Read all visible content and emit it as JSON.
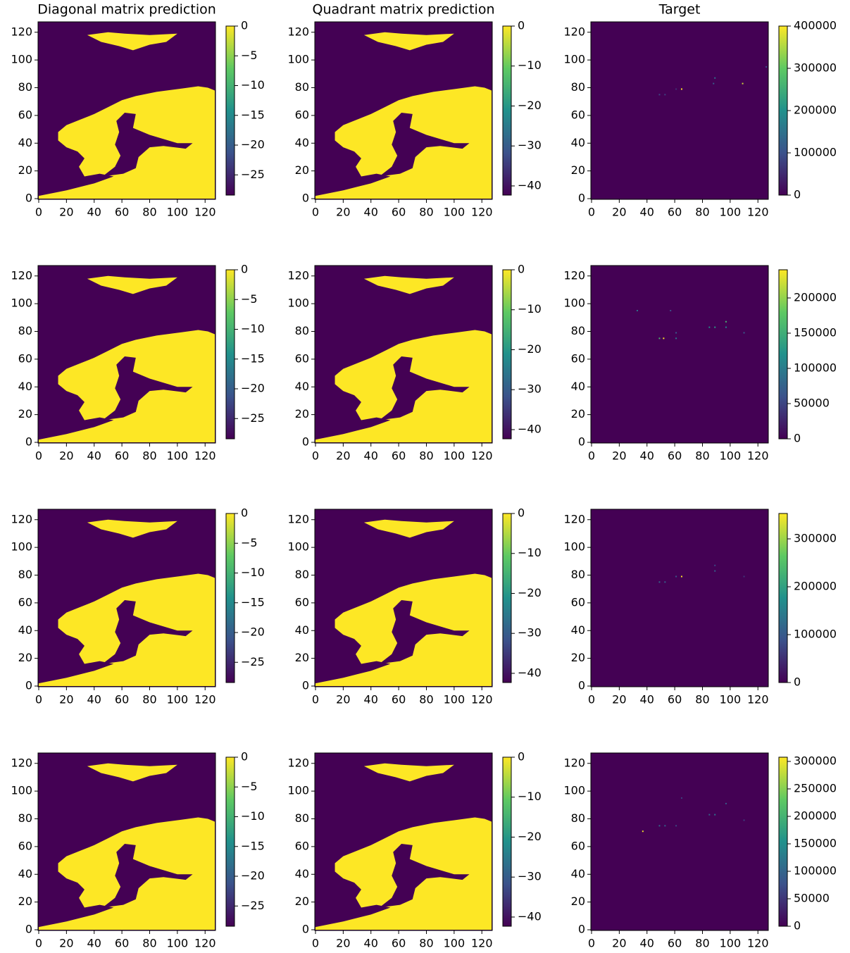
{
  "chart_data": [
    {
      "type": "heatmap",
      "title": "Diagonal matrix prediction",
      "xlim": [
        -0.5,
        127.5
      ],
      "ylim": [
        -0.5,
        127.5
      ],
      "xticks": [
        0,
        20,
        40,
        60,
        80,
        100,
        120
      ],
      "yticks": [
        0,
        20,
        40,
        60,
        80,
        100,
        120
      ],
      "cmap": "viridis",
      "clim": [
        -28.4,
        0
      ],
      "cticks": [
        {
          "value": -25,
          "label": "−25"
        },
        {
          "value": -20,
          "label": "−20"
        },
        {
          "value": -15,
          "label": "−15"
        },
        {
          "value": -10,
          "label": "−10"
        },
        {
          "value": -5,
          "label": "−5"
        },
        0
      ]
    },
    {
      "type": "heatmap",
      "title": "Quadrant matrix prediction",
      "xlim": [
        -0.5,
        127.5
      ],
      "ylim": [
        -0.5,
        127.5
      ],
      "xticks": [
        0,
        20,
        40,
        60,
        80,
        100,
        120
      ],
      "yticks": [
        0,
        20,
        40,
        60,
        80,
        100,
        120
      ],
      "cmap": "viridis",
      "clim": [
        -42.3,
        0
      ],
      "cticks": [
        {
          "value": -40,
          "label": "−40"
        },
        {
          "value": -30,
          "label": "−30"
        },
        {
          "value": -20,
          "label": "−20"
        },
        {
          "value": -10,
          "label": "−10"
        },
        0
      ]
    },
    {
      "type": "heatmap",
      "title": "Target",
      "xlim": [
        -0.5,
        127.5
      ],
      "ylim": [
        -0.5,
        127.5
      ],
      "xticks": [
        0,
        20,
        40,
        60,
        80,
        100,
        120
      ],
      "yticks": [
        0,
        20,
        40,
        60,
        80,
        100,
        120
      ],
      "cmap": "viridis",
      "clim": [
        0,
        400000
      ],
      "cticks": [
        0,
        100000,
        200000,
        300000,
        400000
      ],
      "points": {
        "x": [
          65,
          109,
          89,
          88,
          49,
          53,
          126,
          61
        ],
        "y": [
          79,
          83,
          87,
          83,
          75,
          75,
          95,
          79
        ],
        "values": [
          400000,
          370000,
          150000,
          120000,
          90000,
          80000,
          100000,
          60000
        ]
      }
    },
    {
      "type": "heatmap",
      "xlim": [
        -0.5,
        127.5
      ],
      "ylim": [
        -0.5,
        127.5
      ],
      "xticks": [
        0,
        20,
        40,
        60,
        80,
        100,
        120
      ],
      "yticks": [
        0,
        20,
        40,
        60,
        80,
        100,
        120
      ],
      "cmap": "viridis",
      "clim": [
        -28.4,
        0
      ],
      "cticks": [
        {
          "value": -25,
          "label": "−25"
        },
        {
          "value": -20,
          "label": "−20"
        },
        {
          "value": -15,
          "label": "−15"
        },
        {
          "value": -10,
          "label": "−10"
        },
        {
          "value": -5,
          "label": "−5"
        },
        0
      ]
    },
    {
      "type": "heatmap",
      "xlim": [
        -0.5,
        127.5
      ],
      "ylim": [
        -0.5,
        127.5
      ],
      "xticks": [
        0,
        20,
        40,
        60,
        80,
        100,
        120
      ],
      "yticks": [
        0,
        20,
        40,
        60,
        80,
        100,
        120
      ],
      "cmap": "viridis",
      "clim": [
        -42.3,
        0
      ],
      "cticks": [
        {
          "value": -40,
          "label": "−40"
        },
        {
          "value": -30,
          "label": "−30"
        },
        {
          "value": -20,
          "label": "−20"
        },
        {
          "value": -10,
          "label": "−10"
        },
        0
      ]
    },
    {
      "type": "heatmap",
      "xlim": [
        -0.5,
        127.5
      ],
      "ylim": [
        -0.5,
        127.5
      ],
      "xticks": [
        0,
        20,
        40,
        60,
        80,
        100,
        120
      ],
      "yticks": [
        0,
        20,
        40,
        60,
        80,
        100,
        120
      ],
      "cmap": "viridis",
      "clim": [
        0,
        240000
      ],
      "cticks": [
        0,
        50000,
        100000,
        150000,
        200000
      ],
      "points": {
        "x": [
          52,
          49,
          61,
          89,
          97,
          85,
          33,
          57,
          61,
          97,
          110
        ],
        "y": [
          75,
          75,
          75,
          83,
          87,
          83,
          95,
          95,
          79,
          83,
          79
        ],
        "values": [
          240000,
          160000,
          100000,
          130000,
          160000,
          120000,
          90000,
          60000,
          70000,
          110000,
          70000
        ]
      }
    },
    {
      "type": "heatmap",
      "xlim": [
        -0.5,
        127.5
      ],
      "ylim": [
        -0.5,
        127.5
      ],
      "xticks": [
        0,
        20,
        40,
        60,
        80,
        100,
        120
      ],
      "yticks": [
        0,
        20,
        40,
        60,
        80,
        100,
        120
      ],
      "cmap": "viridis",
      "clim": [
        -28.4,
        0
      ],
      "cticks": [
        {
          "value": -25,
          "label": "−25"
        },
        {
          "value": -20,
          "label": "−20"
        },
        {
          "value": -15,
          "label": "−15"
        },
        {
          "value": -10,
          "label": "−10"
        },
        {
          "value": -5,
          "label": "−5"
        },
        0
      ]
    },
    {
      "type": "heatmap",
      "xlim": [
        -0.5,
        127.5
      ],
      "ylim": [
        -0.5,
        127.5
      ],
      "xticks": [
        0,
        20,
        40,
        60,
        80,
        100,
        120
      ],
      "yticks": [
        0,
        20,
        40,
        60,
        80,
        100,
        120
      ],
      "cmap": "viridis",
      "clim": [
        -42.3,
        0
      ],
      "cticks": [
        {
          "value": -40,
          "label": "−40"
        },
        {
          "value": -30,
          "label": "−30"
        },
        {
          "value": -20,
          "label": "−20"
        },
        {
          "value": -10,
          "label": "−10"
        },
        0
      ]
    },
    {
      "type": "heatmap",
      "xlim": [
        -0.5,
        127.5
      ],
      "ylim": [
        -0.5,
        127.5
      ],
      "xticks": [
        0,
        20,
        40,
        60,
        80,
        100,
        120
      ],
      "yticks": [
        0,
        20,
        40,
        60,
        80,
        100,
        120
      ],
      "cmap": "viridis",
      "clim": [
        0,
        353000
      ],
      "cticks": [
        0,
        100000,
        200000,
        300000
      ],
      "points": {
        "x": [
          65,
          49,
          53,
          61,
          89,
          89,
          110
        ],
        "y": [
          79,
          75,
          75,
          79,
          83,
          87,
          79
        ],
        "values": [
          353000,
          120000,
          110000,
          100000,
          110000,
          80000,
          60000
        ]
      }
    },
    {
      "type": "heatmap",
      "xlim": [
        -0.5,
        127.5
      ],
      "ylim": [
        -0.5,
        127.5
      ],
      "xticks": [
        0,
        20,
        40,
        60,
        80,
        100,
        120
      ],
      "yticks": [
        0,
        20,
        40,
        60,
        80,
        100,
        120
      ],
      "cmap": "viridis",
      "clim": [
        -28.4,
        0
      ],
      "cticks": [
        {
          "value": -25,
          "label": "−25"
        },
        {
          "value": -20,
          "label": "−20"
        },
        {
          "value": -15,
          "label": "−15"
        },
        {
          "value": -10,
          "label": "−10"
        },
        {
          "value": -5,
          "label": "−5"
        },
        0
      ]
    },
    {
      "type": "heatmap",
      "xlim": [
        -0.5,
        127.5
      ],
      "ylim": [
        -0.5,
        127.5
      ],
      "xticks": [
        0,
        20,
        40,
        60,
        80,
        100,
        120
      ],
      "yticks": [
        0,
        20,
        40,
        60,
        80,
        100,
        120
      ],
      "cmap": "viridis",
      "clim": [
        -42.3,
        0
      ],
      "cticks": [
        {
          "value": -40,
          "label": "−40"
        },
        {
          "value": -30,
          "label": "−30"
        },
        {
          "value": -20,
          "label": "−20"
        },
        {
          "value": -10,
          "label": "−10"
        },
        0
      ]
    },
    {
      "type": "heatmap",
      "xlim": [
        -0.5,
        127.5
      ],
      "ylim": [
        -0.5,
        127.5
      ],
      "xticks": [
        0,
        20,
        40,
        60,
        80,
        100,
        120
      ],
      "yticks": [
        0,
        20,
        40,
        60,
        80,
        100,
        120
      ],
      "cmap": "viridis",
      "clim": [
        0,
        307700
      ],
      "cticks": [
        0,
        50000,
        100000,
        150000,
        200000,
        250000,
        300000
      ],
      "points": {
        "x": [
          37,
          49,
          53,
          65,
          89,
          97,
          85,
          61,
          110
        ],
        "y": [
          71,
          75,
          75,
          95,
          83,
          91,
          83,
          75,
          79
        ],
        "values": [
          300000,
          110000,
          100000,
          60000,
          120000,
          90000,
          100000,
          70000,
          60000
        ]
      }
    }
  ]
}
